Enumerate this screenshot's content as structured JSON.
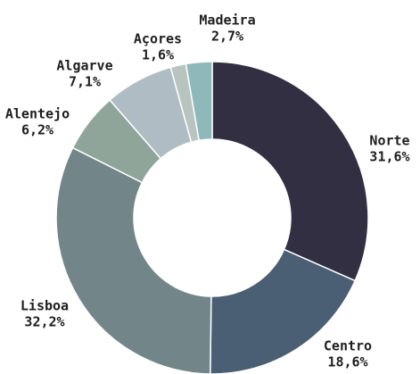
{
  "chart_data": {
    "type": "donut",
    "categories": [
      "Norte",
      "Centro",
      "Lisboa",
      "Alentejo",
      "Algarve",
      "Açores",
      "Madeira"
    ],
    "values": [
      31.6,
      18.6,
      32.2,
      6.2,
      7.1,
      1.6,
      2.7
    ],
    "value_labels": [
      "31,6%",
      "18,6%",
      "32,2%",
      "6,2%",
      "7,1%",
      "1,6%",
      "2,7%"
    ],
    "colors": [
      "#322f43",
      "#4a5e74",
      "#72868a",
      "#8fa59a",
      "#b0bcc3",
      "#b8c4be",
      "#8fb8bb"
    ]
  }
}
